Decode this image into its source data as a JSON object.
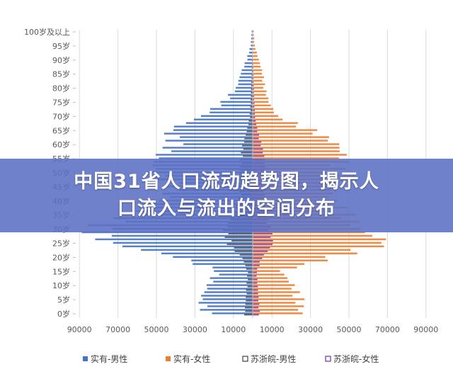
{
  "banner": {
    "line1": "中国31省人口流动趋势图，揭示人",
    "line2": "口流入与流出的空间分布"
  },
  "chart_data": {
    "type": "bar",
    "orientation": "horizontal-population-pyramid",
    "categories": [
      "0岁",
      "5岁",
      "10岁",
      "15岁",
      "20岁",
      "25岁",
      "30岁",
      "35岁",
      "40岁",
      "45岁",
      "50岁",
      "55岁",
      "60岁",
      "65岁",
      "70岁",
      "75岁",
      "80岁",
      "85岁",
      "90岁",
      "95岁",
      "100岁及以上"
    ],
    "x_tick_labels": [
      "90000",
      "70000",
      "50000",
      "30000",
      "10000",
      "10000",
      "30000",
      "50000",
      "70000",
      "90000"
    ],
    "xlim": [
      -100000,
      100000
    ],
    "grid": true,
    "legend_position": "bottom",
    "series": [
      {
        "name": "实有-男性",
        "side": "left",
        "color": "#4472C4",
        "values": [
          24000,
          26000,
          22000,
          18000,
          38000,
          72000,
          82000,
          60000,
          45000,
          40000,
          50000,
          48000,
          40000,
          42000,
          25000,
          15000,
          8000,
          6000,
          3000,
          1000,
          500
        ]
      },
      {
        "name": "实有-女性",
        "side": "right",
        "color": "#ED7D31",
        "values": [
          24000,
          24000,
          20000,
          14000,
          42000,
          68000,
          52000,
          48000,
          40000,
          38000,
          42000,
          46000,
          42000,
          30000,
          12000,
          8000,
          6000,
          5000,
          3000,
          1000,
          500
        ]
      },
      {
        "name": "苏浙皖-男性",
        "side": "left",
        "color": "#404040",
        "values": [
          4000,
          3500,
          3000,
          2500,
          5000,
          12000,
          14000,
          10000,
          7000,
          6000,
          6500,
          6000,
          5000,
          3000,
          1500,
          1000,
          800,
          500,
          300,
          100,
          50
        ]
      },
      {
        "name": "苏浙皖-女性",
        "side": "right",
        "color": "#7030A0",
        "values": [
          3500,
          3000,
          2500,
          2000,
          4500,
          10000,
          9000,
          7000,
          6000,
          5500,
          6000,
          6000,
          4500,
          2500,
          1200,
          800,
          600,
          400,
          200,
          100,
          50
        ]
      }
    ]
  }
}
